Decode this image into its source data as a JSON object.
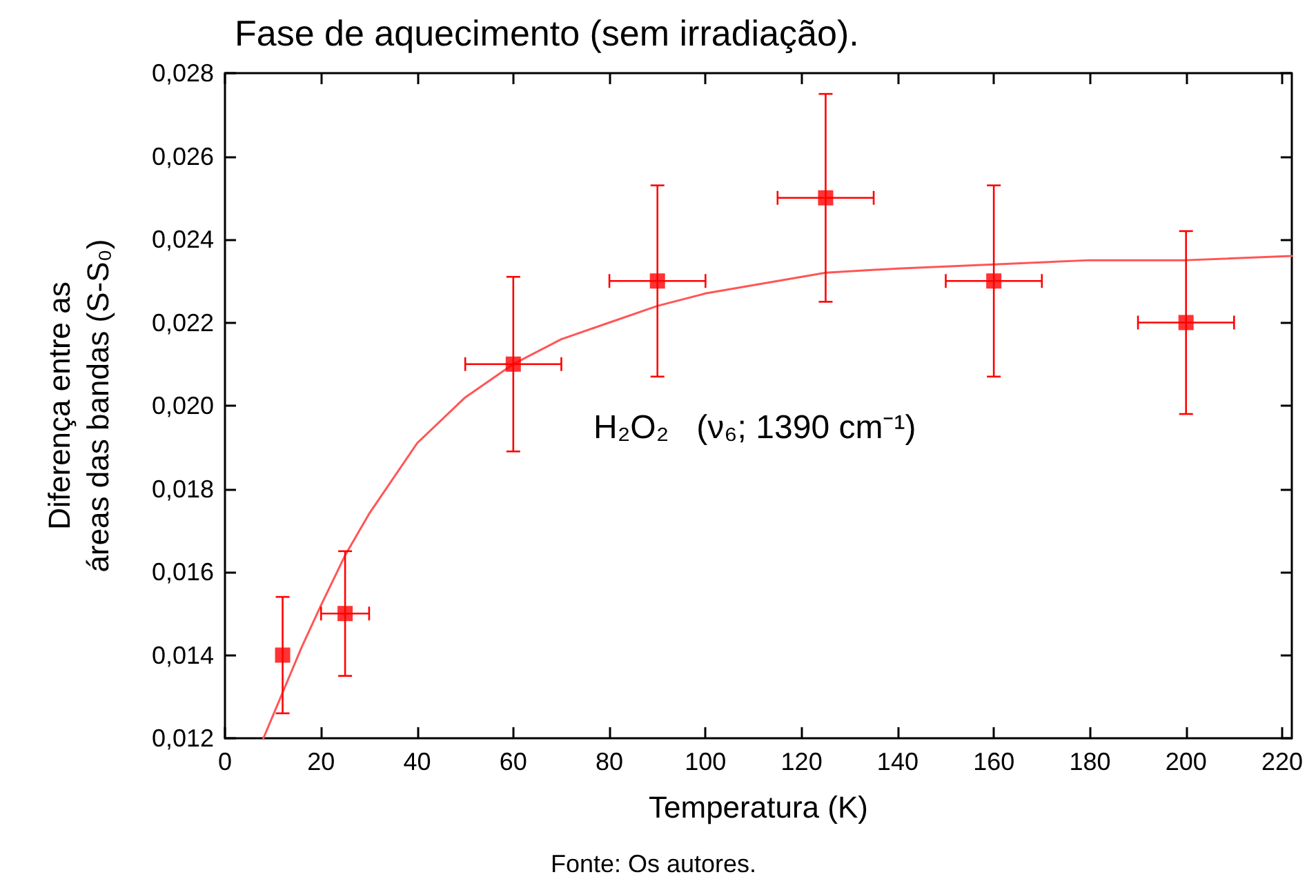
{
  "chart_data": {
    "type": "scatter",
    "title": "Fase de aquecimento (sem irradiação).",
    "xlabel": "Temperatura (K)",
    "ylabel": "Diferença entre as\náreas das bandas (S-S₀)",
    "xlim": [
      0,
      222
    ],
    "xticks": [
      0,
      20,
      40,
      60,
      80,
      100,
      120,
      140,
      160,
      180,
      200,
      220
    ],
    "ylim": [
      0.012,
      0.028
    ],
    "yticks": [
      {
        "value": 0.012,
        "label": "0,012"
      },
      {
        "value": 0.014,
        "label": "0,014"
      },
      {
        "value": 0.016,
        "label": "0,016"
      },
      {
        "value": 0.018,
        "label": "0,018"
      },
      {
        "value": 0.02,
        "label": "0,020"
      },
      {
        "value": 0.022,
        "label": "0,022"
      },
      {
        "value": 0.024,
        "label": "0,024"
      },
      {
        "value": 0.026,
        "label": "0,026"
      },
      {
        "value": 0.028,
        "label": "0,028"
      }
    ],
    "grid": false,
    "series": [
      {
        "marker": "square",
        "color": "#ff0000",
        "x": [
          12,
          25,
          60,
          90,
          125,
          160,
          200
        ],
        "values": [
          0.014,
          0.015,
          0.021,
          0.023,
          0.025,
          0.023,
          0.022
        ],
        "errors": [
          0.0014,
          0.0015,
          0.0021,
          0.0023,
          0.0025,
          0.0023,
          0.0022
        ],
        "xerrors": [
          null,
          5,
          10,
          10,
          10,
          10,
          10
        ]
      },
      {
        "type": "line",
        "marker": "none",
        "color": "#ff5555",
        "x": [
          8,
          12,
          16,
          20,
          25,
          30,
          40,
          50,
          60,
          70,
          80,
          90,
          100,
          110,
          125,
          140,
          160,
          180,
          200,
          222
        ],
        "values": [
          0.012,
          0.0131,
          0.0142,
          0.0152,
          0.0164,
          0.0174,
          0.0191,
          0.0202,
          0.021,
          0.0216,
          0.022,
          0.0224,
          0.0227,
          0.0229,
          0.0232,
          0.0233,
          0.0234,
          0.0235,
          0.0235,
          0.0236
        ]
      }
    ],
    "annotations": [
      "H₂O₂   (ν₆; 1390 cm⁻¹)",
      "Fonte: Os autores."
    ]
  }
}
